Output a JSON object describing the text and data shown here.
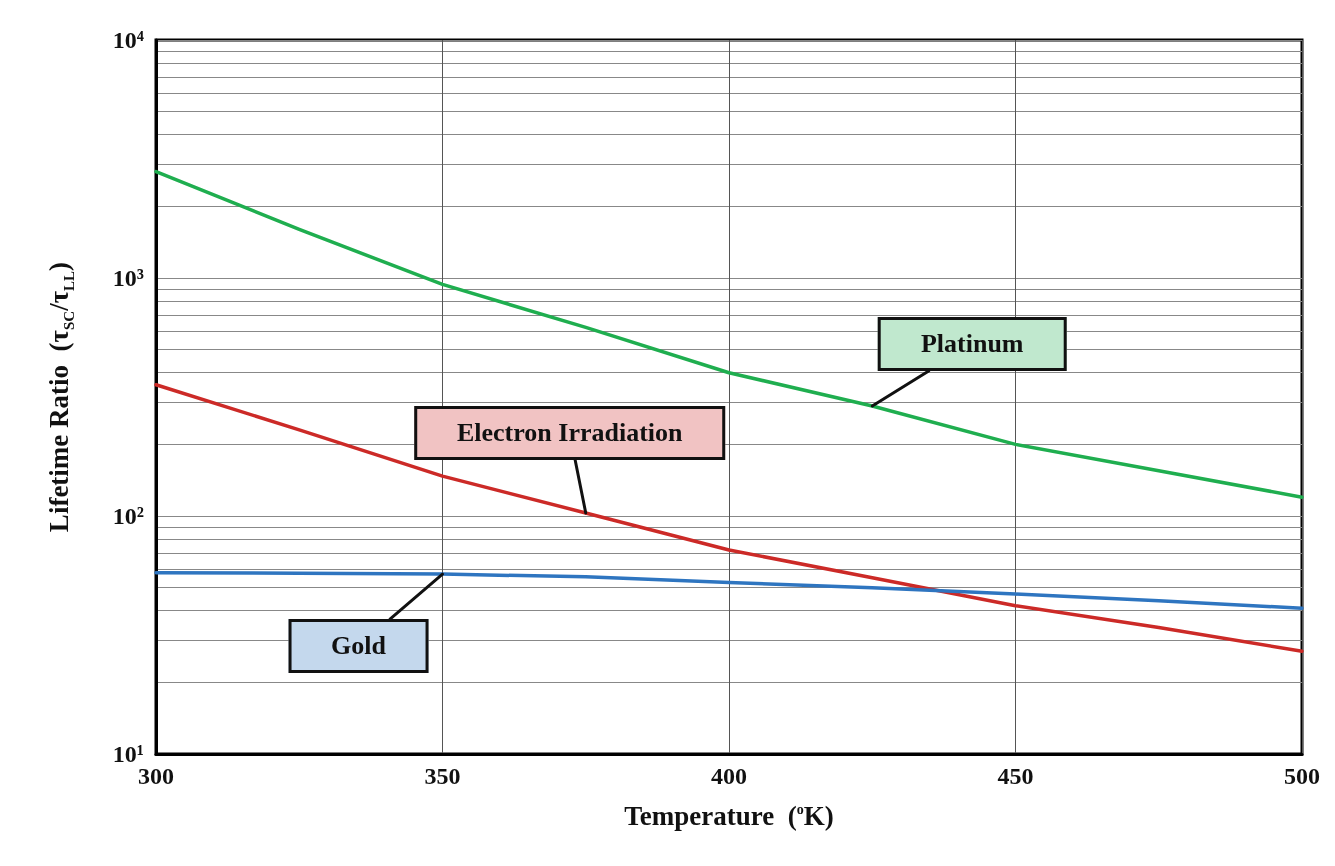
{
  "chart_data": {
    "type": "line",
    "xlabel": "Temperature  ($^{o}$K)",
    "ylabel": "Lifetime Ratio  (τ$_{SC}$/τ$_{LL}$)",
    "x": [
      300,
      325,
      350,
      375,
      400,
      425,
      450,
      475,
      500
    ],
    "series": [
      {
        "name": "Platinum",
        "color": "#1fae4f",
        "values": [
          2800,
          1600,
          940,
          620,
          400,
          290,
          200,
          155,
          120
        ]
      },
      {
        "name": "Electron Irradiation",
        "color": "#cc2a27",
        "values": [
          356,
          230,
          147,
          103,
          72,
          55,
          42,
          34,
          27
        ]
      },
      {
        "name": "Gold",
        "color": "#2e75c0",
        "values": [
          57.7,
          57.5,
          57,
          55.5,
          52.5,
          50,
          47,
          44,
          41
        ]
      }
    ],
    "log": "y",
    "xlim": [
      300,
      500
    ],
    "xticks": [
      300,
      350,
      400,
      450,
      500
    ],
    "ylim": [
      10,
      10000
    ],
    "yticks": [
      {
        "value": 10,
        "label": "10¹"
      },
      {
        "value": 20,
        "label": null
      },
      {
        "value": 30,
        "label": null
      },
      {
        "value": 40,
        "label": null
      },
      {
        "value": 50,
        "label": null
      },
      {
        "value": 60,
        "label": null
      },
      {
        "value": 70,
        "label": null
      },
      {
        "value": 80,
        "label": null
      },
      {
        "value": 90,
        "label": null
      },
      {
        "value": 100,
        "label": "10²"
      },
      {
        "value": 200,
        "label": null
      },
      {
        "value": 300,
        "label": null
      },
      {
        "value": 400,
        "label": null
      },
      {
        "value": 500,
        "label": null
      },
      {
        "value": 600,
        "label": null
      },
      {
        "value": 700,
        "label": null
      },
      {
        "value": 800,
        "label": null
      },
      {
        "value": 900,
        "label": null
      },
      {
        "value": 1000,
        "label": "10³"
      },
      {
        "value": 2000,
        "label": null
      },
      {
        "value": 3000,
        "label": null
      },
      {
        "value": 4000,
        "label": null
      },
      {
        "value": 5000,
        "label": null
      },
      {
        "value": 6000,
        "label": null
      },
      {
        "value": 7000,
        "label": null
      },
      {
        "value": 8000,
        "label": null
      },
      {
        "value": 9000,
        "label": null
      },
      {
        "value": 10000,
        "label": "10⁴"
      }
    ],
    "grid": true,
    "legend": false,
    "marker": "none",
    "line_style": "solid"
  }
}
